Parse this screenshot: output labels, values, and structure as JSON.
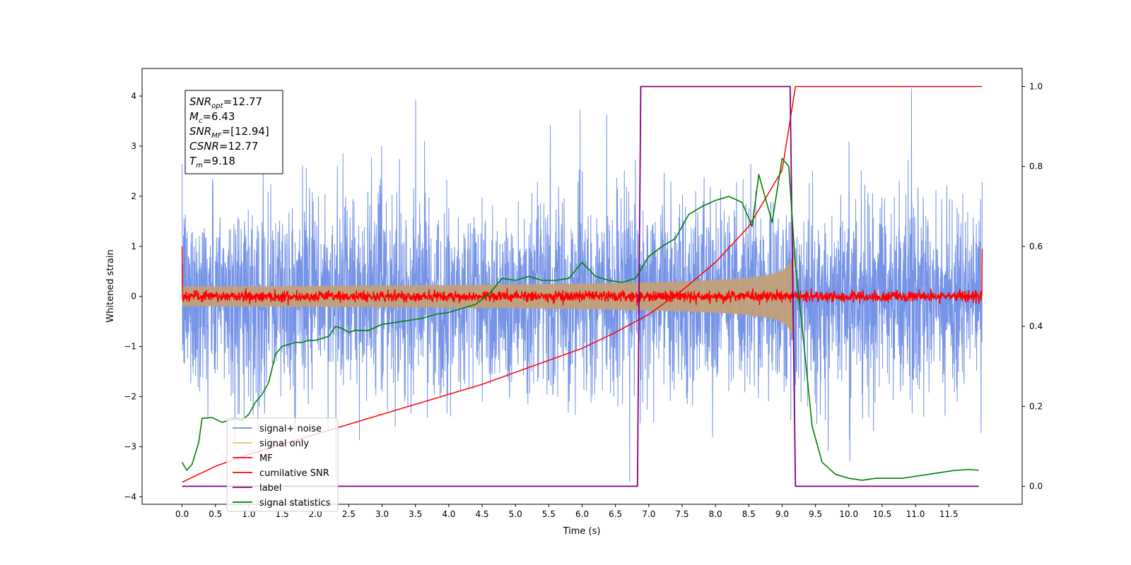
{
  "chart_data": {
    "type": "line",
    "title": "",
    "xlabel": "Time (s)",
    "ylabel": "Whitened strain",
    "ylabel_right": "",
    "xlim": [
      -0.6,
      12.6
    ],
    "ylim": [
      -4.15,
      4.55
    ],
    "ylim_right": [
      -0.045,
      1.045
    ],
    "x_ticks": [
      "0.0",
      "0.5",
      "1.0",
      "1.5",
      "2.0",
      "2.5",
      "3.0",
      "3.5",
      "4.0",
      "4.5",
      "5.0",
      "5.5",
      "6.0",
      "6.5",
      "7.0",
      "7.5",
      "8.0",
      "8.5",
      "9.0",
      "9.5",
      "10.0",
      "10.5",
      "11.0",
      "11.5"
    ],
    "y_ticks_left": [
      "4",
      "3",
      "2",
      "1",
      "0",
      "−1",
      "−2",
      "−3",
      "−4"
    ],
    "y_ticks_right": [
      "1.0",
      "0.8",
      "0.6",
      "0.4",
      "0.2",
      "0.0"
    ],
    "grid": false,
    "legend_position": "lower-left",
    "info_box": {
      "lines": [
        {
          "main": "SNR",
          "sub": "opt",
          "value": "=12.77"
        },
        {
          "main": "M",
          "sub": "c",
          "value": "=6.43"
        },
        {
          "main": "SNR",
          "sub": "MF",
          "value": "=[12.94]"
        },
        {
          "main": "CSNR",
          "sub": "",
          "value": "=12.77"
        },
        {
          "main": "T",
          "sub": "m",
          "value": "=9.18"
        }
      ]
    },
    "series": [
      {
        "name": "signal+ noise",
        "color": "#6f8ee6",
        "axis": "left",
        "kind": "noise",
        "band": [
          -2.0,
          2.0
        ],
        "x_range": [
          0.0,
          12.0
        ]
      },
      {
        "name": "signal only",
        "color": "#f5bd6f",
        "axis": "left",
        "kind": "chirp",
        "x_range": [
          0.0,
          9.18
        ],
        "peak_amplitude": 0.9
      },
      {
        "name": "MF",
        "color": "#ff0000",
        "axis": "left",
        "kind": "mf",
        "x_range": [
          0.0,
          12.0
        ],
        "edge_values": [
          1.0,
          0.95
        ]
      },
      {
        "name": "cumilative SNR",
        "color": "#ff0000",
        "axis": "right",
        "x": [
          0.0,
          0.5,
          1.0,
          1.5,
          2.0,
          2.5,
          3.0,
          3.5,
          4.0,
          4.5,
          5.0,
          5.5,
          6.0,
          6.5,
          7.0,
          7.5,
          8.0,
          8.5,
          9.0,
          9.2,
          12.0
        ],
        "values": [
          0.01,
          0.05,
          0.08,
          0.105,
          0.13,
          0.155,
          0.18,
          0.205,
          0.23,
          0.255,
          0.285,
          0.315,
          0.345,
          0.385,
          0.43,
          0.49,
          0.56,
          0.65,
          0.79,
          1.0,
          1.0
        ]
      },
      {
        "name": "label",
        "color": "#800080",
        "axis": "right",
        "x": [
          0.0,
          6.83,
          6.88,
          9.12,
          9.2,
          11.95
        ],
        "values": [
          0.0,
          0.0,
          1.0,
          1.0,
          0.0,
          0.0
        ]
      },
      {
        "name": "signal statistics",
        "color": "#008000",
        "axis": "right",
        "x": [
          0.0,
          0.07,
          0.15,
          0.25,
          0.3,
          0.45,
          0.6,
          0.7,
          0.8,
          0.9,
          1.0,
          1.1,
          1.2,
          1.3,
          1.4,
          1.5,
          1.6,
          1.7,
          1.8,
          1.9,
          2.0,
          2.1,
          2.2,
          2.3,
          2.4,
          2.5,
          2.6,
          2.8,
          3.0,
          3.2,
          3.4,
          3.6,
          3.8,
          4.0,
          4.2,
          4.4,
          4.6,
          4.8,
          5.0,
          5.2,
          5.4,
          5.6,
          5.8,
          6.0,
          6.2,
          6.4,
          6.6,
          6.8,
          7.0,
          7.2,
          7.4,
          7.6,
          7.8,
          8.0,
          8.2,
          8.4,
          8.55,
          8.65,
          8.75,
          8.85,
          9.0,
          9.1,
          9.2,
          9.3,
          9.45,
          9.6,
          9.8,
          10.0,
          10.2,
          10.4,
          10.6,
          10.8,
          11.0,
          11.2,
          11.4,
          11.6,
          11.8,
          11.95
        ],
        "values": [
          0.06,
          0.04,
          0.055,
          0.11,
          0.17,
          0.172,
          0.16,
          0.165,
          0.17,
          0.165,
          0.18,
          0.21,
          0.23,
          0.26,
          0.33,
          0.35,
          0.355,
          0.36,
          0.36,
          0.365,
          0.365,
          0.37,
          0.375,
          0.4,
          0.395,
          0.385,
          0.39,
          0.39,
          0.405,
          0.41,
          0.415,
          0.42,
          0.43,
          0.435,
          0.445,
          0.455,
          0.48,
          0.52,
          0.515,
          0.525,
          0.515,
          0.515,
          0.52,
          0.56,
          0.525,
          0.515,
          0.51,
          0.52,
          0.575,
          0.6,
          0.62,
          0.68,
          0.7,
          0.715,
          0.725,
          0.71,
          0.65,
          0.78,
          0.72,
          0.66,
          0.82,
          0.8,
          0.55,
          0.4,
          0.15,
          0.06,
          0.03,
          0.02,
          0.015,
          0.02,
          0.02,
          0.02,
          0.025,
          0.03,
          0.035,
          0.04,
          0.042,
          0.04
        ]
      }
    ]
  }
}
